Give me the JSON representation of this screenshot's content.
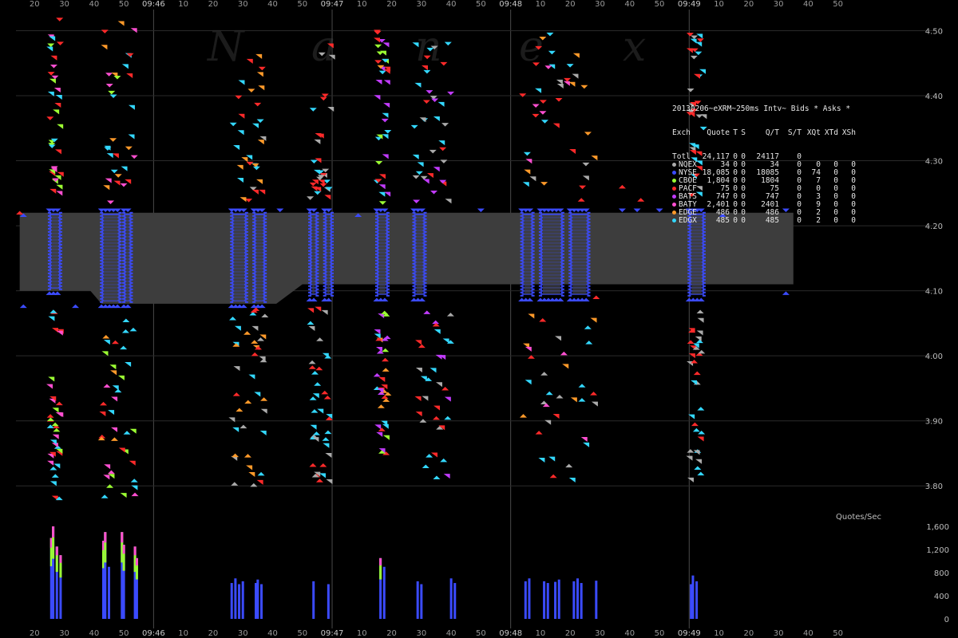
{
  "chart_data": {
    "type": "scatter",
    "watermark": [
      "N",
      "a",
      "n",
      "e",
      "x"
    ],
    "legend_title": "20130206~eXRM~250ms Intv~ Bids * Asks *",
    "legend_header": [
      "Exch",
      "Quote",
      "T",
      "S",
      "Q/T",
      "S/T",
      "XQt",
      "XTd",
      "XSh"
    ],
    "legend_rows": [
      {
        "name": "Totl",
        "quote": "24,117",
        "t": "0",
        "s": "0",
        "qt": "24117",
        "st": "0",
        "xqt": "",
        "xtd": "",
        "xsh": "",
        "color": ""
      },
      {
        "name": "NQEX",
        "quote": "34",
        "t": "0",
        "s": "0",
        "qt": "34",
        "st": "0",
        "xqt": "0",
        "xtd": "0",
        "xsh": "0",
        "color": "#aaaaaa"
      },
      {
        "name": "NYSE",
        "quote": "18,085",
        "t": "0",
        "s": "0",
        "qt": "18085",
        "st": "0",
        "xqt": "74",
        "xtd": "0",
        "xsh": "0",
        "color": "#3b4bff"
      },
      {
        "name": "CBOE",
        "quote": "1,804",
        "t": "0",
        "s": "0",
        "qt": "1804",
        "st": "0",
        "xqt": "7",
        "xtd": "0",
        "xsh": "0",
        "color": "#9cff33"
      },
      {
        "name": "PACF",
        "quote": "75",
        "t": "0",
        "s": "0",
        "qt": "75",
        "st": "0",
        "xqt": "0",
        "xtd": "0",
        "xsh": "0",
        "color": "#ff2a2a"
      },
      {
        "name": "BATS",
        "quote": "747",
        "t": "0",
        "s": "0",
        "qt": "747",
        "st": "0",
        "xqt": "3",
        "xtd": "0",
        "xsh": "0",
        "color": "#c23bff"
      },
      {
        "name": "BATY",
        "quote": "2,401",
        "t": "0",
        "s": "0",
        "qt": "2401",
        "st": "0",
        "xqt": "9",
        "xtd": "0",
        "xsh": "0",
        "color": "#ff4fd1"
      },
      {
        "name": "EDGE",
        "quote": "486",
        "t": "0",
        "s": "0",
        "qt": "486",
        "st": "0",
        "xqt": "2",
        "xtd": "0",
        "xsh": "0",
        "color": "#ff9a2a"
      },
      {
        "name": "EDGX",
        "quote": "485",
        "t": "0",
        "s": "0",
        "qt": "485",
        "st": "0",
        "xqt": "2",
        "xtd": "0",
        "xsh": "0",
        "color": "#33d8ff"
      }
    ],
    "y_ticks": [
      "4.50",
      "4.40",
      "4.30",
      "4.20",
      "4.10",
      "4.00",
      "3.90",
      "3.80"
    ],
    "y_range": [
      3.75,
      4.53
    ],
    "qps_label": "Quotes/Sec",
    "qps_ticks": [
      "1,600",
      "1,200",
      "800",
      "400",
      "0"
    ],
    "qps_range": [
      0,
      1600
    ],
    "x_labels": [
      "20",
      "30",
      "40",
      "50",
      "09:46",
      "10",
      "20",
      "30",
      "40",
      "50",
      "09:47",
      "10",
      "20",
      "30",
      "40",
      "50",
      "09:48",
      "10",
      "20",
      "30",
      "40",
      "50",
      "09:49",
      "10",
      "20",
      "30",
      "40",
      "50"
    ],
    "x_range_seconds": [
      15,
      235
    ],
    "nbbo_band": [
      {
        "t": 16,
        "bid": 4.1,
        "ask": 4.22
      },
      {
        "t": 35,
        "bid": 4.1,
        "ask": 4.22
      },
      {
        "t": 38,
        "bid": 4.08,
        "ask": 4.22
      },
      {
        "t": 85,
        "bid": 4.08,
        "ask": 4.22
      },
      {
        "t": 92,
        "bid": 4.11,
        "ask": 4.22
      },
      {
        "t": 190,
        "bid": 4.11,
        "ask": 4.22
      },
      {
        "t": 205,
        "bid": 4.11,
        "ask": 4.22
      },
      {
        "t": 224,
        "bid": 4.11,
        "ask": 4.22
      }
    ],
    "activity_bursts": [
      {
        "start": 24,
        "end": 27,
        "lo": 4.1,
        "hi": 4.22
      },
      {
        "start": 38,
        "end": 43,
        "lo": 4.08,
        "hi": 4.22
      },
      {
        "start": 44,
        "end": 46,
        "lo": 4.08,
        "hi": 4.22
      },
      {
        "start": 73,
        "end": 77,
        "lo": 4.08,
        "hi": 4.22
      },
      {
        "start": 79,
        "end": 82,
        "lo": 4.08,
        "hi": 4.22
      },
      {
        "start": 94,
        "end": 96,
        "lo": 4.09,
        "hi": 4.22
      },
      {
        "start": 98,
        "end": 100,
        "lo": 4.09,
        "hi": 4.22
      },
      {
        "start": 112,
        "end": 115,
        "lo": 4.09,
        "hi": 4.22
      },
      {
        "start": 122,
        "end": 125,
        "lo": 4.09,
        "hi": 4.22
      },
      {
        "start": 151,
        "end": 154,
        "lo": 4.09,
        "hi": 4.22
      },
      {
        "start": 156,
        "end": 162,
        "lo": 4.09,
        "hi": 4.22
      },
      {
        "start": 164,
        "end": 169,
        "lo": 4.09,
        "hi": 4.22
      },
      {
        "start": 196,
        "end": 200,
        "lo": 4.09,
        "hi": 4.22
      }
    ],
    "qps_bars": [
      {
        "t": 24.5,
        "v": 1400
      },
      {
        "t": 25,
        "v": 1600
      },
      {
        "t": 26,
        "v": 1250
      },
      {
        "t": 27,
        "v": 1100
      },
      {
        "t": 38.5,
        "v": 1350
      },
      {
        "t": 39,
        "v": 1500
      },
      {
        "t": 40,
        "v": 900
      },
      {
        "t": 43.5,
        "v": 1500
      },
      {
        "t": 44,
        "v": 1280
      },
      {
        "t": 47,
        "v": 1250
      },
      {
        "t": 47.5,
        "v": 1050
      },
      {
        "t": 73,
        "v": 620
      },
      {
        "t": 74,
        "v": 700
      },
      {
        "t": 75,
        "v": 600
      },
      {
        "t": 76,
        "v": 650
      },
      {
        "t": 79.5,
        "v": 620
      },
      {
        "t": 80,
        "v": 680
      },
      {
        "t": 81,
        "v": 600
      },
      {
        "t": 95,
        "v": 650
      },
      {
        "t": 99,
        "v": 600
      },
      {
        "t": 113,
        "v": 1050
      },
      {
        "t": 114,
        "v": 900
      },
      {
        "t": 123,
        "v": 650
      },
      {
        "t": 124,
        "v": 600
      },
      {
        "t": 132,
        "v": 700
      },
      {
        "t": 133,
        "v": 620
      },
      {
        "t": 152,
        "v": 650
      },
      {
        "t": 153,
        "v": 700
      },
      {
        "t": 157,
        "v": 650
      },
      {
        "t": 158,
        "v": 620
      },
      {
        "t": 160,
        "v": 640
      },
      {
        "t": 161,
        "v": 680
      },
      {
        "t": 165,
        "v": 650
      },
      {
        "t": 166,
        "v": 700
      },
      {
        "t": 167,
        "v": 620
      },
      {
        "t": 171,
        "v": 660
      },
      {
        "t": 196.5,
        "v": 600
      },
      {
        "t": 197,
        "v": 750
      },
      {
        "t": 198,
        "v": 650
      }
    ],
    "colors": {
      "band": "#3d3d3d",
      "nyse": "#3b4bff",
      "cboe": "#9cff33",
      "pacf": "#ff2a2a",
      "bats": "#c23bff",
      "baty": "#ff4fd1",
      "edge": "#ff9a2a",
      "edgx": "#33d8ff",
      "nqex": "#aaaaaa",
      "grid": "#2a2a2a",
      "minute_line": "#4a4a4a"
    }
  }
}
